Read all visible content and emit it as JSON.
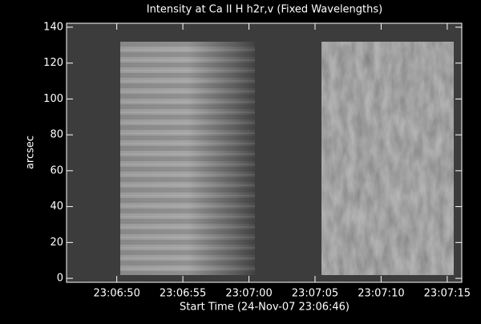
{
  "chart_data": {
    "type": "image",
    "title": "Intensity at Ca II H h2r,v (Fixed Wavelengths)",
    "xlabel": "Start Time (24-Nov-07 23:06:46)",
    "ylabel": "arcsec",
    "xlim": [
      0.2,
      30.1
    ],
    "ylim": [
      -2.2,
      142.2
    ],
    "xticks": [
      {
        "value": 4,
        "label": "23:06:50"
      },
      {
        "value": 9,
        "label": "23:06:55"
      },
      {
        "value": 14,
        "label": "23:07:00"
      },
      {
        "value": 19,
        "label": "23:07:05"
      },
      {
        "value": 24,
        "label": "23:07:10"
      },
      {
        "value": 29,
        "label": "23:07:15"
      }
    ],
    "yticks": [
      0,
      20,
      40,
      60,
      80,
      100,
      120,
      140
    ]
  }
}
